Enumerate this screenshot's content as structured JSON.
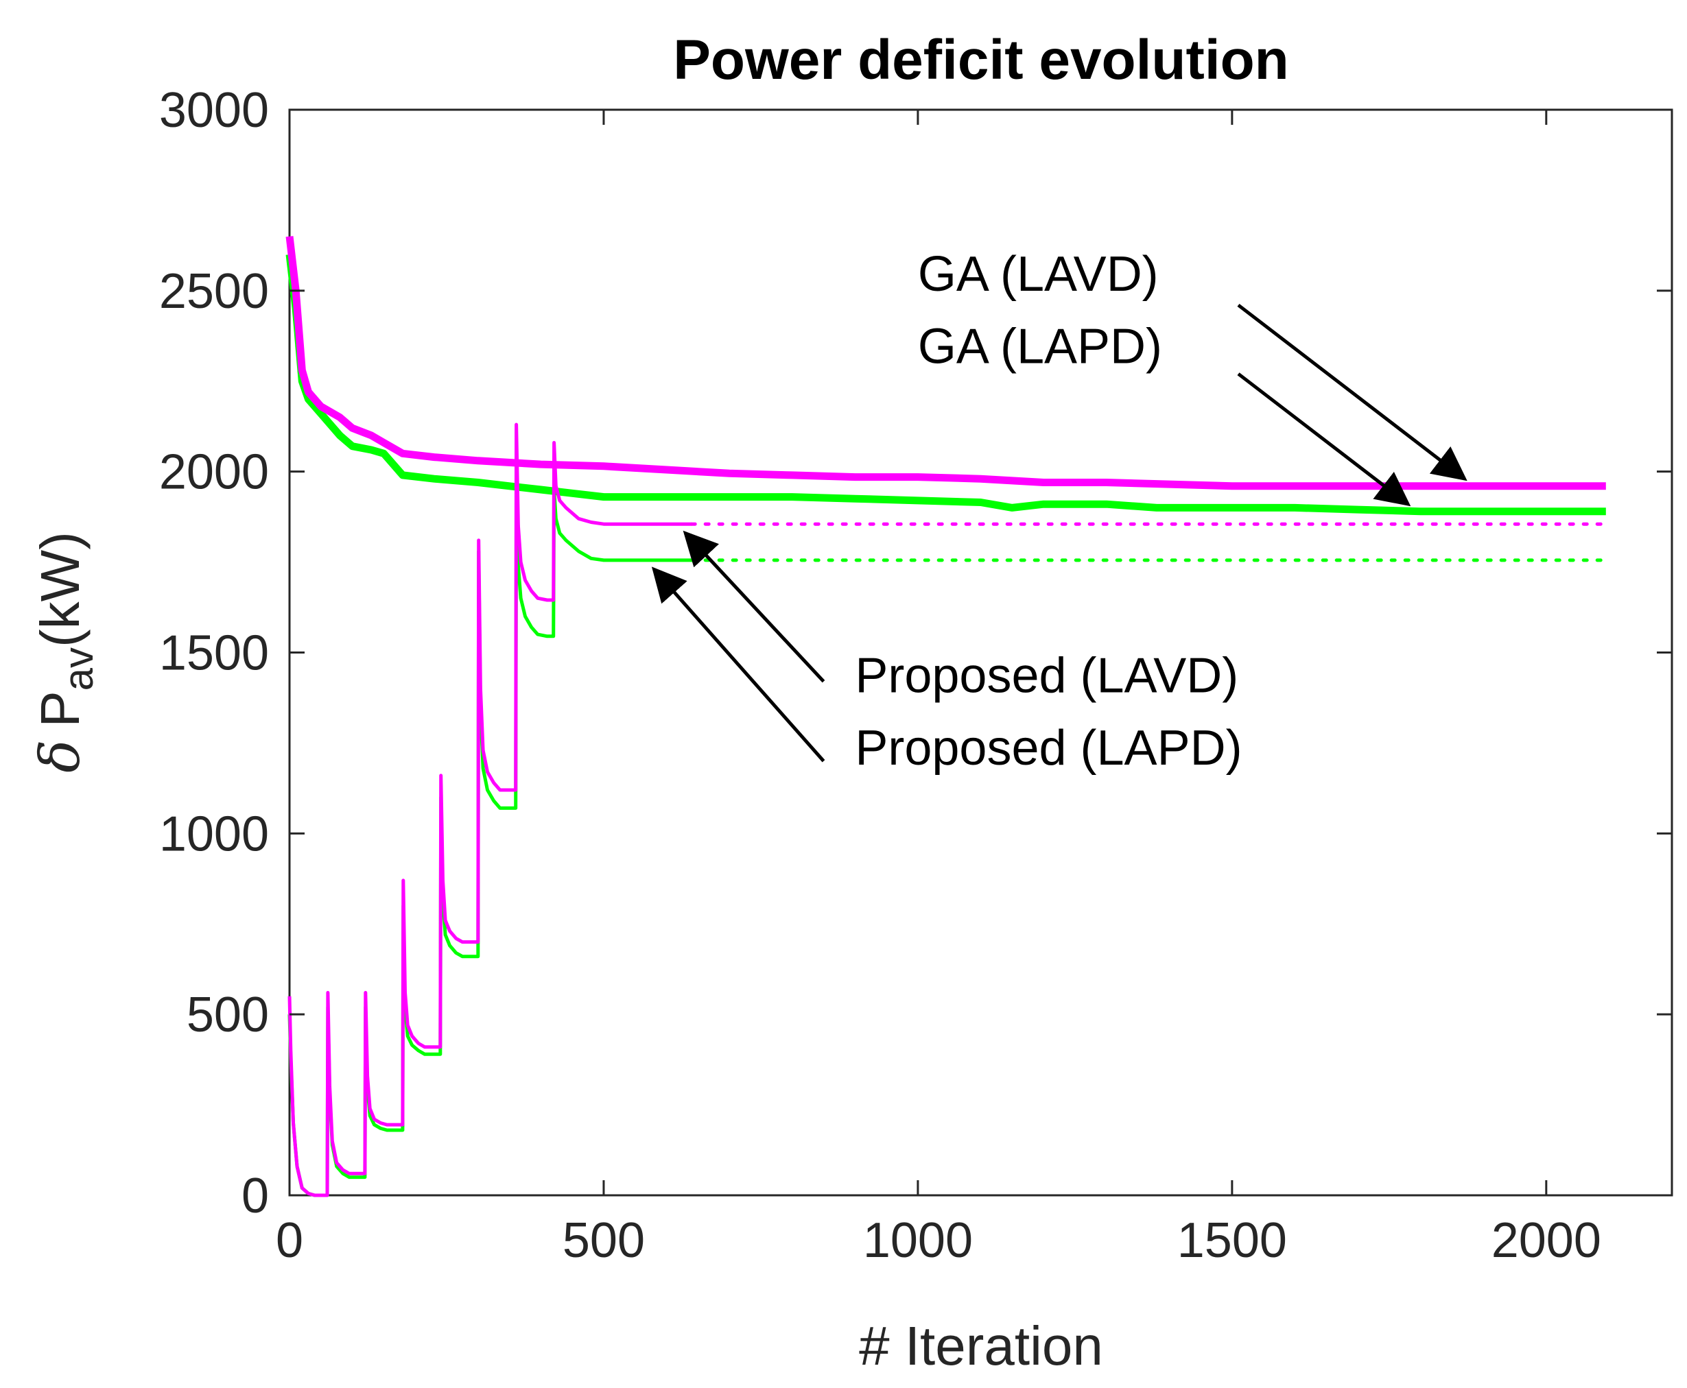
{
  "chart_data": {
    "type": "line",
    "title": "Power deficit evolution",
    "xlabel": "# Iteration",
    "ylabel": {
      "symbol": "δ",
      "main": "P",
      "subscript": "av",
      "unit": "(kW)"
    },
    "xlim": [
      0,
      2200
    ],
    "ylim": [
      0,
      3000
    ],
    "xticks": [
      0,
      500,
      1000,
      1500,
      2000
    ],
    "yticks": [
      0,
      500,
      1000,
      1500,
      2000,
      2500,
      3000
    ],
    "grid": false,
    "colors": {
      "lavd": "#ff00ff",
      "lapd": "#00ff00",
      "axis": "#262626",
      "annotation": "#000000"
    },
    "series": [
      {
        "id": "ga-lapd",
        "color": "#00ff00",
        "style": "solid-thick",
        "x": [
          0,
          10,
          20,
          30,
          50,
          80,
          100,
          130,
          150,
          180,
          230,
          300,
          350,
          400,
          450,
          500,
          600,
          700,
          800,
          900,
          1000,
          1100,
          1150,
          1200,
          1300,
          1380,
          1500,
          1600,
          1700,
          1800,
          1900,
          2000,
          2095
        ],
        "y": [
          2600,
          2450,
          2250,
          2200,
          2160,
          2100,
          2070,
          2060,
          2050,
          1990,
          1980,
          1970,
          1960,
          1950,
          1940,
          1930,
          1930,
          1930,
          1930,
          1925,
          1920,
          1915,
          1900,
          1910,
          1910,
          1900,
          1900,
          1900,
          1895,
          1890,
          1890,
          1890,
          1890
        ]
      },
      {
        "id": "ga-lavd",
        "color": "#ff00ff",
        "style": "solid-thick",
        "x": [
          0,
          10,
          20,
          30,
          50,
          80,
          100,
          130,
          150,
          180,
          230,
          300,
          400,
          500,
          600,
          700,
          800,
          900,
          1000,
          1100,
          1200,
          1300,
          1400,
          1500,
          1600,
          1700,
          1800,
          1900,
          2000,
          2095
        ],
        "y": [
          2650,
          2500,
          2280,
          2220,
          2180,
          2150,
          2120,
          2100,
          2080,
          2050,
          2040,
          2030,
          2020,
          2015,
          2005,
          1995,
          1990,
          1985,
          1985,
          1980,
          1970,
          1970,
          1965,
          1960,
          1960,
          1960,
          1960,
          1960,
          1960,
          1960
        ]
      },
      {
        "id": "proposed-lapd",
        "color": "#00ff00",
        "style": "solid-thin",
        "x": [
          0,
          2,
          6,
          12,
          20,
          30,
          40,
          55,
          60,
          61,
          64,
          68,
          75,
          85,
          95,
          110,
          120,
          121,
          124,
          128,
          135,
          145,
          155,
          170,
          180,
          181,
          184,
          188,
          195,
          205,
          215,
          230,
          240,
          241,
          244,
          248,
          255,
          265,
          275,
          290,
          300,
          301,
          304,
          308,
          315,
          325,
          335,
          350,
          360,
          361,
          364,
          368,
          375,
          385,
          395,
          410,
          420,
          421,
          424,
          430,
          440,
          460,
          480,
          500,
          550,
          600,
          640
        ],
        "y": [
          500,
          380,
          200,
          80,
          20,
          5,
          0,
          0,
          0,
          520,
          280,
          140,
          80,
          60,
          50,
          50,
          50,
          520,
          300,
          220,
          195,
          185,
          180,
          180,
          180,
          800,
          520,
          440,
          415,
          400,
          390,
          390,
          390,
          1100,
          820,
          720,
          690,
          670,
          660,
          660,
          660,
          1780,
          1350,
          1180,
          1120,
          1090,
          1070,
          1070,
          1070,
          1930,
          1740,
          1650,
          1600,
          1570,
          1550,
          1545,
          1545,
          1950,
          1870,
          1830,
          1810,
          1780,
          1760,
          1755,
          1755,
          1755,
          1755
        ]
      },
      {
        "id": "proposed-lavd",
        "color": "#ff00ff",
        "style": "solid-thin",
        "x": [
          0,
          2,
          6,
          12,
          20,
          30,
          40,
          55,
          60,
          61,
          64,
          68,
          75,
          85,
          95,
          110,
          120,
          121,
          124,
          128,
          135,
          145,
          155,
          170,
          180,
          181,
          184,
          188,
          195,
          205,
          215,
          230,
          240,
          241,
          244,
          248,
          255,
          265,
          275,
          290,
          300,
          301,
          304,
          308,
          315,
          325,
          335,
          350,
          360,
          361,
          364,
          368,
          375,
          385,
          395,
          410,
          420,
          421,
          424,
          430,
          440,
          460,
          480,
          500,
          550,
          600,
          640
        ],
        "y": [
          550,
          400,
          200,
          80,
          20,
          5,
          0,
          0,
          0,
          560,
          300,
          150,
          90,
          70,
          60,
          60,
          60,
          560,
          330,
          240,
          210,
          200,
          195,
          195,
          195,
          870,
          560,
          470,
          440,
          420,
          410,
          410,
          410,
          1160,
          870,
          760,
          730,
          710,
          700,
          700,
          700,
          1810,
          1400,
          1230,
          1170,
          1140,
          1120,
          1120,
          1120,
          2130,
          1850,
          1750,
          1700,
          1670,
          1650,
          1645,
          1645,
          2080,
          1960,
          1920,
          1900,
          1870,
          1860,
          1855,
          1855,
          1855,
          1855
        ]
      },
      {
        "id": "proposed-lapd-extension",
        "color": "#00ff00",
        "style": "dotted",
        "x": [
          640,
          2095
        ],
        "y": [
          1755,
          1755
        ]
      },
      {
        "id": "proposed-lavd-extension",
        "color": "#ff00ff",
        "style": "dotted",
        "x": [
          640,
          2095
        ],
        "y": [
          1855,
          1855
        ]
      }
    ],
    "annotations": [
      {
        "id": "ga-lavd",
        "text": "GA (LAVD)",
        "text_pos": [
          1000,
          2500
        ],
        "arrow_from": [
          1510,
          2460
        ],
        "arrow_to": [
          1870,
          1980
        ]
      },
      {
        "id": "ga-lapd",
        "text": "GA (LAPD)",
        "text_pos": [
          1000,
          2300
        ],
        "arrow_from": [
          1510,
          2270
        ],
        "arrow_to": [
          1780,
          1910
        ]
      },
      {
        "id": "proposed-lavd",
        "text": "Proposed (LAVD)",
        "text_pos": [
          900,
          1390
        ],
        "arrow_from": [
          850,
          1420
        ],
        "arrow_to": [
          630,
          1830
        ]
      },
      {
        "id": "proposed-lapd",
        "text": "Proposed (LAPD)",
        "text_pos": [
          900,
          1190
        ],
        "arrow_from": [
          850,
          1200
        ],
        "arrow_to": [
          580,
          1730
        ]
      }
    ]
  }
}
